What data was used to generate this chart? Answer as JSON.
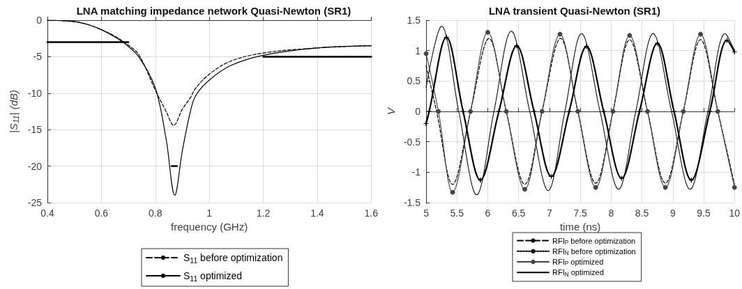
{
  "chart_data": [
    {
      "type": "line",
      "title": "LNA matching impedance network Quasi-Newton (SR1)",
      "xlabel": "frequency (GHz)",
      "ylabel": "|S$_{11}$| (dB)",
      "xlim": [
        0.4,
        1.6
      ],
      "xticks": [
        0.4,
        0.6,
        0.8,
        1,
        1.2,
        1.4,
        1.6
      ],
      "ylim": [
        -25,
        0
      ],
      "yticks": [
        -25,
        -20,
        -15,
        -10,
        -5,
        0
      ],
      "grid": true,
      "legend": "bottom",
      "series": [
        {
          "name": "S$_{11}$ before optimization",
          "color": "#000000",
          "line_style": "dashed",
          "marker": "none",
          "x": [
            0.4,
            0.5,
            0.55,
            0.6,
            0.65,
            0.7,
            0.74,
            0.8,
            0.84,
            0.868,
            0.9,
            0.93,
            0.95,
            1.0,
            1.08,
            1.2,
            1.4,
            1.6
          ],
          "values": [
            0,
            -0.2,
            -0.6,
            -1.3,
            -2.2,
            -3.4,
            -4.8,
            -9.6,
            -12.5,
            -14.4,
            -12.2,
            -10.6,
            -9.3,
            -7.4,
            -5.6,
            -4.5,
            -3.8,
            -3.5
          ]
        },
        {
          "name": "S$_{11}$ optimized",
          "color": "#000000",
          "line_style": "solid",
          "marker": "none",
          "x": [
            0.4,
            0.5,
            0.55,
            0.6,
            0.65,
            0.7,
            0.74,
            0.8,
            0.84,
            0.872,
            0.9,
            0.93,
            0.95,
            1.0,
            1.08,
            1.2,
            1.4,
            1.6
          ],
          "values": [
            0,
            -0.2,
            -0.6,
            -1.3,
            -2.3,
            -3.6,
            -5.1,
            -9.3,
            -16.3,
            -24,
            -17.9,
            -12.5,
            -10.3,
            -8.2,
            -6.2,
            -4.8,
            -3.8,
            -3.5
          ]
        },
        {
          "color": "#000000",
          "line_style": "solid",
          "marker": "none",
          "x": [
            0.4,
            0.7
          ],
          "values": [
            -3,
            -3
          ]
        },
        {
          "color": "#000000",
          "line_style": "solid",
          "marker": "none",
          "x": [
            0.86,
            0.88
          ],
          "values": [
            -20,
            -20
          ]
        },
        {
          "color": "#000000",
          "line_style": "solid",
          "marker": "none",
          "x": [
            1.2,
            1.6
          ],
          "values": [
            -5,
            -5
          ]
        }
      ]
    },
    {
      "type": "line",
      "title": "LNA transient Quasi-Newton (SR1)",
      "xlabel": "time (ns)",
      "ylabel": "V",
      "xlim": [
        5,
        10
      ],
      "xticks": [
        5,
        5.5,
        6,
        6.5,
        7,
        7.5,
        8,
        8.5,
        9,
        9.5,
        10
      ],
      "ylim": [
        -1.5,
        1.5
      ],
      "yticks": [
        -1.5,
        -1,
        -0.5,
        0,
        0.5,
        1,
        1.5
      ],
      "grid": true,
      "legend": "bottom",
      "series": [
        {
          "name": "RFI$_{P}$ before optimization",
          "color": "#000000",
          "line_style": "dashed",
          "marker": "none",
          "x": [
            5,
            5.17,
            5.43,
            5.72,
            6.02,
            6.3,
            6.6,
            6.88,
            7.18,
            7.46,
            7.75,
            8.03,
            8.3,
            8.59,
            8.88,
            9.17,
            9.45,
            9.73,
            10
          ],
          "values": [
            0.75,
            0,
            -1.2,
            0,
            1.2,
            0,
            -1.2,
            0,
            1.2,
            0,
            -1.18,
            0,
            1.18,
            0,
            -1.18,
            0,
            1.18,
            0,
            -1.2
          ]
        },
        {
          "name": "RFI$_{N}$ before optimization",
          "color": "#000000",
          "line_style": "dotted",
          "marker": "none",
          "x": [
            5,
            5.25,
            5.53,
            5.82,
            6.1,
            6.38,
            6.68,
            6.98,
            7.25,
            7.52,
            7.82,
            8.12,
            8.4,
            8.68,
            8.98,
            9.28,
            9.57,
            9.85,
            10
          ],
          "values": [
            0.4,
            1.4,
            0,
            -1.37,
            0,
            1.32,
            0,
            -1.3,
            0,
            1.28,
            0,
            -1.28,
            0,
            1.28,
            0,
            -1.28,
            0,
            1.28,
            1.0
          ]
        },
        {
          "name": "RFI$_{P}$ optimized",
          "color": "#444444",
          "line_style": "solid",
          "marker": "circle",
          "x": [
            5,
            5.2,
            5.43,
            5.72,
            6.0,
            6.3,
            6.6,
            6.88,
            7.17,
            7.46,
            7.75,
            8.03,
            8.3,
            8.59,
            8.88,
            9.17,
            9.45,
            9.73,
            10
          ],
          "values": [
            0.95,
            0,
            -1.33,
            0,
            1.3,
            0,
            -1.28,
            0,
            1.27,
            0,
            -1.25,
            0,
            1.25,
            0,
            -1.25,
            0,
            1.27,
            0,
            -1.25
          ]
        },
        {
          "name": "RFI$_{N}$ optimized",
          "color": "#000000",
          "line_style": "solid",
          "marker": "cross",
          "x": [
            5,
            5.05,
            5.33,
            5.6,
            5.88,
            6.18,
            6.47,
            6.75,
            7.03,
            7.32,
            7.6,
            7.88,
            8.17,
            8.46,
            8.75,
            9.02,
            9.3,
            9.6,
            9.88,
            10
          ],
          "values": [
            -0.2,
            0,
            1.22,
            0,
            -1.13,
            0,
            1.08,
            0,
            -1.07,
            0,
            1.07,
            0,
            -1.1,
            0,
            1.12,
            0,
            -1.13,
            0,
            1.17,
            0.98
          ]
        }
      ]
    }
  ]
}
